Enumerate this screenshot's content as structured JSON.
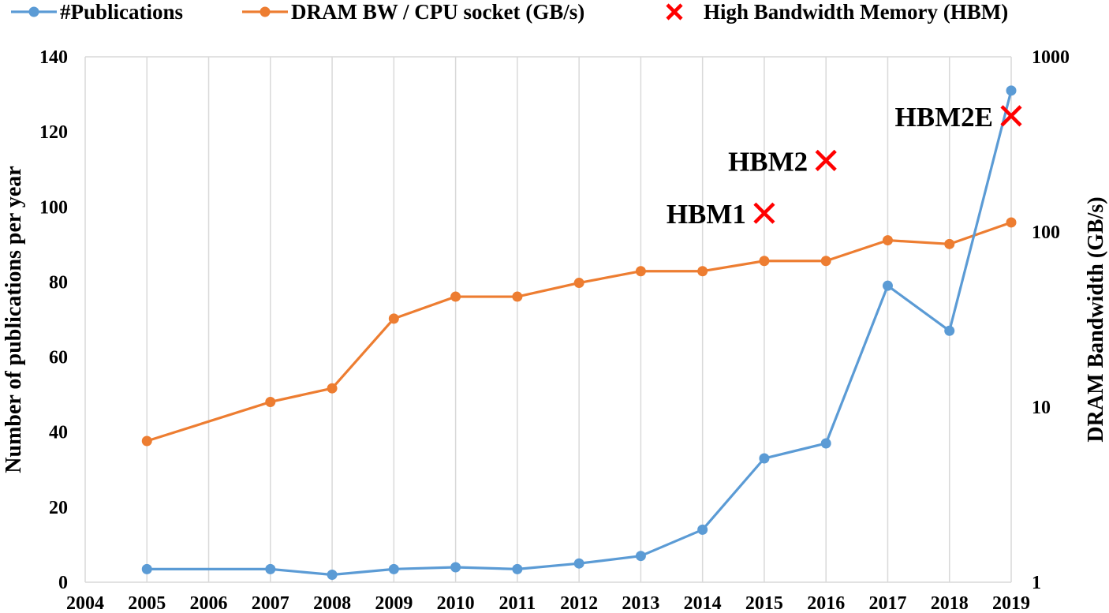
{
  "chart_data": {
    "type": "line",
    "x": [
      2005,
      2007,
      2008,
      2009,
      2010,
      2011,
      2012,
      2013,
      2014,
      2015,
      2016,
      2017,
      2018,
      2019
    ],
    "x_ticks": [
      "2004",
      "2005",
      "2006",
      "2007",
      "2008",
      "2009",
      "2010",
      "2011",
      "2012",
      "2013",
      "2014",
      "2015",
      "2016",
      "2017",
      "2018",
      "2019"
    ],
    "xlim": [
      2004,
      2019
    ],
    "y_left_label": "Number of publications per year",
    "y_left_ticks": [
      "0",
      "20",
      "40",
      "60",
      "80",
      "100",
      "120",
      "140"
    ],
    "y_left_lim": [
      0,
      140
    ],
    "y_right_label": "DRAM Bandwidth (GB/s)",
    "y_right_ticks": [
      "1",
      "10",
      "100",
      "1000"
    ],
    "y_right_lim": [
      1,
      1000
    ],
    "y_right_scale": "log",
    "grid": "vertical",
    "legend_position": "top",
    "series": [
      {
        "name": "#Publications",
        "axis": "left",
        "color": "#5b9bd5",
        "x": [
          2005,
          2007,
          2008,
          2009,
          2010,
          2011,
          2012,
          2013,
          2014,
          2015,
          2016,
          2017,
          2018,
          2019
        ],
        "values": [
          3.5,
          3.5,
          2,
          3.5,
          4,
          3.5,
          5,
          7,
          14,
          33,
          37,
          79,
          67,
          131
        ]
      },
      {
        "name": "DRAM BW / CPU socket (GB/s)",
        "axis": "right",
        "color": "#ed7d31",
        "x": [
          2005,
          2007,
          2008,
          2009,
          2010,
          2011,
          2012,
          2013,
          2014,
          2015,
          2016,
          2017,
          2018,
          2019
        ],
        "values": [
          6.4,
          10.7,
          12.8,
          32,
          42.7,
          42.7,
          51.2,
          59.7,
          59.7,
          68.3,
          68.3,
          89.6,
          85.3,
          113.3
        ]
      },
      {
        "name": "High Bandwidth Memory (HBM)",
        "axis": "right",
        "color": "#ff0000",
        "marker": "x",
        "points": [
          {
            "x": 2015,
            "value": 128,
            "label": "HBM1"
          },
          {
            "x": 2016,
            "value": 256,
            "label": "HBM2"
          },
          {
            "x": 2019,
            "value": 460,
            "label": "HBM2E"
          }
        ]
      }
    ]
  }
}
